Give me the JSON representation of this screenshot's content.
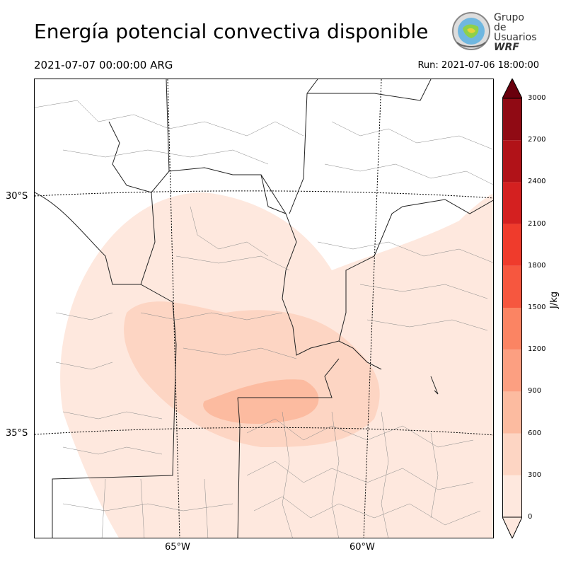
{
  "header": {
    "title": "Energía potencial convectiva disponible",
    "valid_time": "2021-07-07 00:00:00 ARG",
    "run_time": "Run: 2021-07-06 18:00:00"
  },
  "logo": {
    "line1": "Grupo de",
    "line2": "Usuarios",
    "line3": "WRF",
    "icon": "globe-seal-icon"
  },
  "map": {
    "lat_labels": [
      "30°S",
      "35°S"
    ],
    "lon_labels": [
      "65°W",
      "60°W"
    ]
  },
  "colorbar": {
    "unit": "J/kg",
    "ticks": [
      "0",
      "300",
      "600",
      "900",
      "1200",
      "1500",
      "1800",
      "2100",
      "2400",
      "2700",
      "3000"
    ],
    "colors": [
      "#fee8de",
      "#fdd5c3",
      "#fcbba0",
      "#fc9f81",
      "#fb8463",
      "#f6573f",
      "#ef3b2c",
      "#d42020",
      "#b11218",
      "#900a14",
      "#6a000d"
    ]
  }
}
